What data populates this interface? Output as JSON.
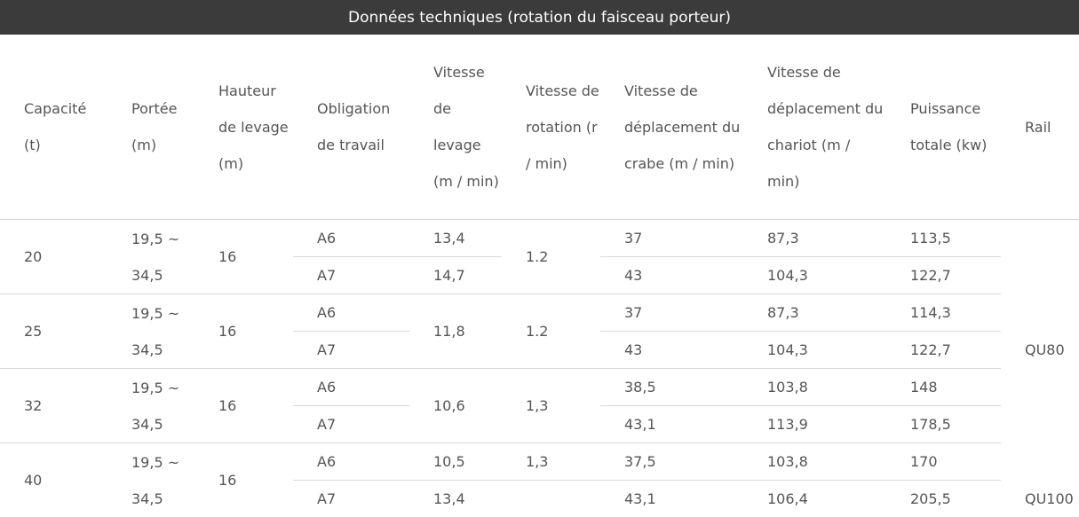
{
  "caption": "Données techniques (rotation du faisceau porteur)",
  "headers": {
    "capacite": "Capacité (t)",
    "portee": "Portée (m)",
    "hauteur": "Hauteur de levage (m)",
    "obligation": "Obligation de travail",
    "vitesse_levage": "Vitesse de levage (m / min)",
    "vitesse_rotation": "Vitesse de rotation (r / min)",
    "vitesse_crabe": "Vitesse de déplacement du crabe (m / min)",
    "vitesse_chariot": "Vitesse de déplacement du chariot (m / min)",
    "puissance": "Puissance totale (kw)",
    "rail": "Rail"
  },
  "rows": {
    "g20": {
      "cap": "20",
      "portee": "19,5 ~ 34,5",
      "hauteur": "16",
      "rot": "1.2",
      "a": {
        "ob": "A6",
        "lev": "13,4",
        "crabe": "37",
        "chariot": "87,3",
        "puiss": "113,5"
      },
      "b": {
        "ob": "A7",
        "lev": "14,7",
        "crabe": "43",
        "chariot": "104,3",
        "puiss": "122,7"
      }
    },
    "g25": {
      "cap": "25",
      "portee": "19,5 ~ 34,5",
      "hauteur": "16",
      "lev": "11,8",
      "rot": "1.2",
      "a": {
        "ob": "A6",
        "crabe": "37",
        "chariot": "87,3",
        "puiss": "114,3"
      },
      "b": {
        "ob": "A7",
        "crabe": "43",
        "chariot": "104,3",
        "puiss": "122,7"
      }
    },
    "g32": {
      "cap": "32",
      "portee": "19,5 ~ 34,5",
      "hauteur": "16",
      "lev": "10,6",
      "rot": "1,3",
      "a": {
        "ob": "A6",
        "crabe": "38,5",
        "chariot": "103,8",
        "puiss": "148"
      },
      "b": {
        "ob": "A7",
        "crabe": "43,1",
        "chariot": "113,9",
        "puiss": "178,5"
      }
    },
    "g40": {
      "cap": "40",
      "portee": "19,5 ~ 34,5",
      "hauteur": "16",
      "a": {
        "ob": "A6",
        "lev": "10,5",
        "rot": "1,3",
        "crabe": "37,5",
        "chariot": "103,8",
        "puiss": "170"
      },
      "b": {
        "ob": "A7",
        "lev": "13,4",
        "crabe": "43,1",
        "chariot": "106,4",
        "puiss": "205,5"
      }
    }
  },
  "rail": {
    "qu80": "QU80",
    "qu100": "QU100"
  }
}
